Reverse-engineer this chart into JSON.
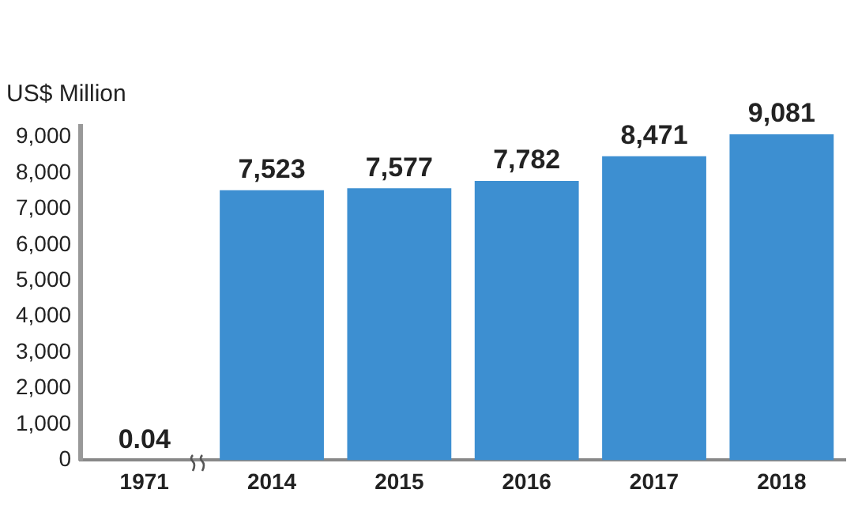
{
  "chart_data": {
    "type": "bar",
    "ylabel": "US$ Million",
    "categories": [
      "1971",
      "2014",
      "2015",
      "2016",
      "2017",
      "2018"
    ],
    "values": [
      0.04,
      7523,
      7577,
      7782,
      8471,
      9081
    ],
    "value_labels": [
      "0.04",
      "7,523",
      "7,577",
      "7,782",
      "8,471",
      "9,081"
    ],
    "color": "#3d8fd1",
    "ylim": [
      0,
      9300
    ],
    "yticks": [
      {
        "value": 0,
        "label": "0"
      },
      {
        "value": 1000,
        "label": "1,000"
      },
      {
        "value": 2000,
        "label": "2,000"
      },
      {
        "value": 3000,
        "label": "3,000"
      },
      {
        "value": 4000,
        "label": "4,000"
      },
      {
        "value": 5000,
        "label": "5,000"
      },
      {
        "value": 6000,
        "label": "6,000"
      },
      {
        "value": 7000,
        "label": "7,000"
      },
      {
        "value": 8000,
        "label": "8,000"
      },
      {
        "value": 9000,
        "label": "9,000"
      }
    ],
    "grid": false,
    "legend": false
  }
}
